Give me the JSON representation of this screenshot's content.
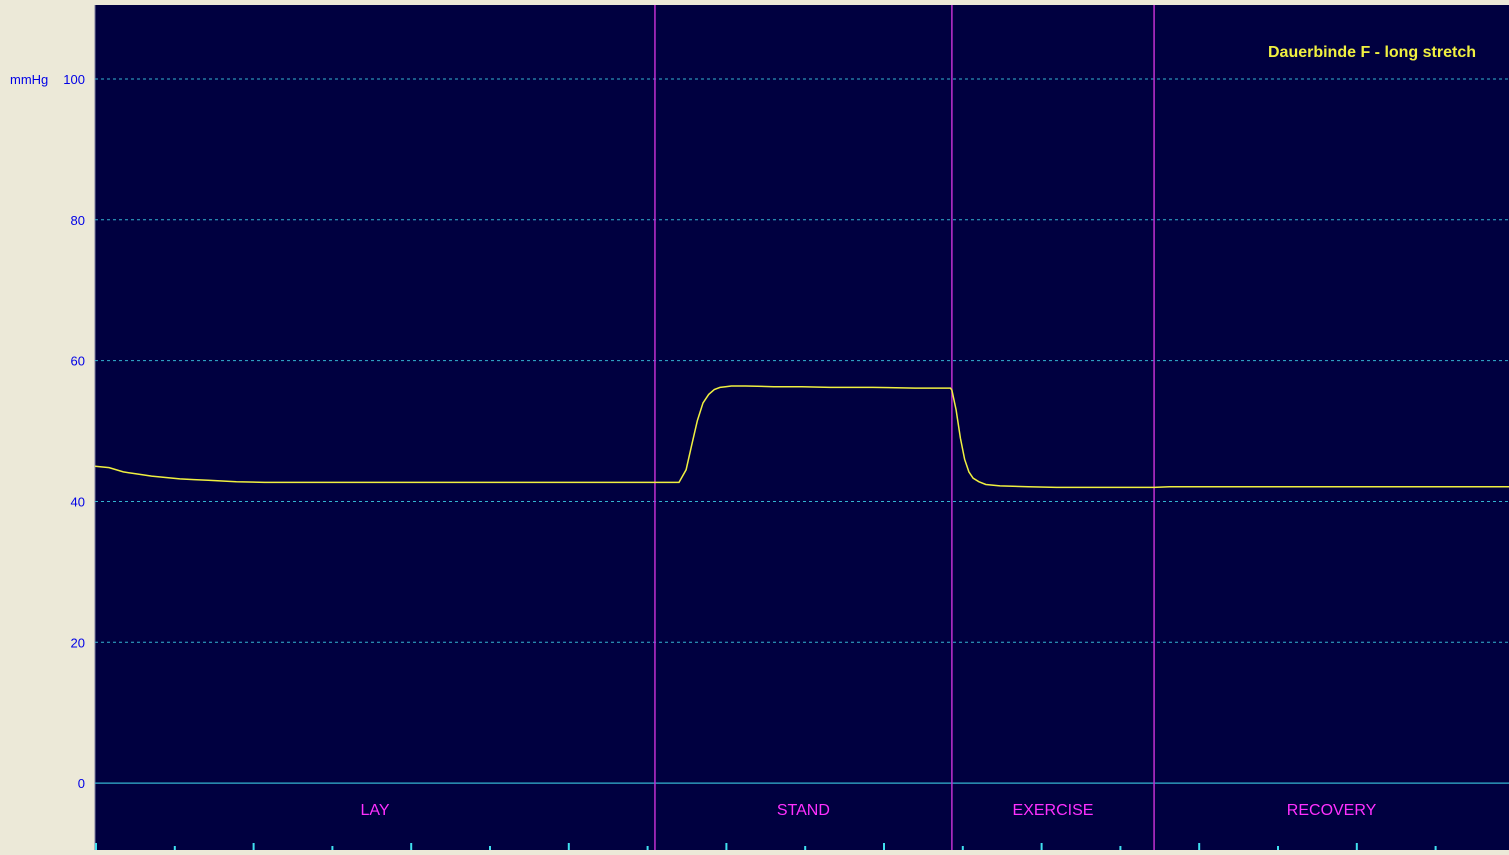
{
  "colors": {
    "window_bg": "#ece9d8",
    "plot_bg": "#000040",
    "grid": "#34b4d0",
    "axis_label": "#0000e6",
    "trace": "#f0f040",
    "phase_line": "#c030d0",
    "phase_label": "#ff30ff",
    "title": "#f0f040",
    "tick": "#40e0f0"
  },
  "chart_data": {
    "type": "line",
    "title": "Dauerbinde F - long stretch",
    "ylabel": "mmHg",
    "xlabel": "",
    "ylim": [
      -9.5,
      110.5
    ],
    "xlim": [
      0,
      100
    ],
    "yticks": [
      0,
      20,
      40,
      60,
      80,
      100
    ],
    "grid": true,
    "grid_dashed_at": [
      20,
      40,
      60,
      80,
      100
    ],
    "baseline_at": 0,
    "phases": [
      {
        "name": "LAY",
        "start": 0,
        "end": 39.6
      },
      {
        "name": "STAND",
        "start": 39.6,
        "end": 60.6
      },
      {
        "name": "EXERCISE",
        "start": 60.6,
        "end": 74.9
      },
      {
        "name": "RECOVERY",
        "start": 74.9,
        "end": 100
      }
    ],
    "series": [
      {
        "x": [
          0,
          1,
          2,
          3,
          4,
          5,
          6,
          7,
          8,
          9,
          10,
          12,
          15,
          20,
          25,
          30,
          35,
          39.6,
          41.3,
          41.8,
          42.2,
          42.6,
          43.0,
          43.4,
          43.8,
          44.2,
          44.6,
          45,
          46,
          48,
          50,
          52,
          55,
          58,
          60.5,
          60.6,
          60.9,
          61.2,
          61.5,
          61.8,
          62.1,
          62.5,
          63,
          64,
          66,
          68,
          70,
          72,
          74.9,
          76,
          78,
          80,
          85,
          90,
          95,
          100
        ],
        "y": [
          45,
          44.8,
          44.2,
          43.9,
          43.6,
          43.4,
          43.2,
          43.1,
          43.0,
          42.9,
          42.8,
          42.7,
          42.7,
          42.7,
          42.7,
          42.7,
          42.7,
          42.7,
          42.7,
          44.5,
          48,
          51.5,
          54,
          55.2,
          55.9,
          56.2,
          56.3,
          56.4,
          56.4,
          56.3,
          56.3,
          56.2,
          56.2,
          56.1,
          56.1,
          55.8,
          53,
          49,
          46,
          44.2,
          43.3,
          42.8,
          42.4,
          42.2,
          42.1,
          42.0,
          42.0,
          42.0,
          42.0,
          42.1,
          42.1,
          42.1,
          42.1,
          42.1,
          42.1,
          42.1
        ]
      }
    ]
  }
}
